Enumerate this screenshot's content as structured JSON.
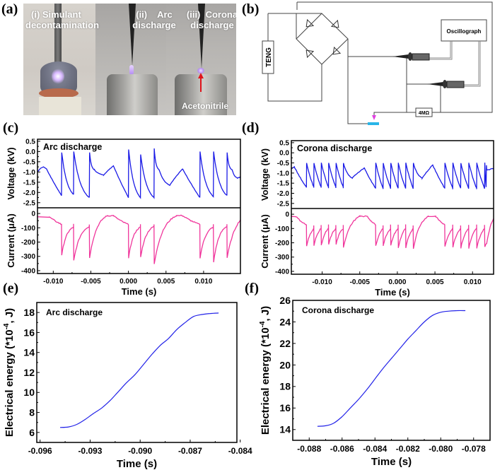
{
  "panels": {
    "a": "(a)",
    "b": "(b)",
    "c": "(c)",
    "d": "(d)",
    "e": "(e)",
    "f": "(f)"
  },
  "photo": {
    "captions": [
      {
        "line1": "(i) Simulant",
        "line2": "decontamination"
      },
      {
        "line1": "(ii)    Arc",
        "line2": "discharge"
      },
      {
        "line1": "(iii)  Corona",
        "line2": "discharge"
      }
    ],
    "annotation": "Acetonitrile",
    "colors": {
      "plasma": "#c9a8ff",
      "arrow": "#e0141b",
      "copper": "#b86a4c"
    }
  },
  "circuit": {
    "teng_label": "TENG",
    "oscillograph_label": "Oscillograph",
    "resistor_label": "4MΩ",
    "colors": {
      "electrode": "#29b5e8",
      "needle": "#e040e0",
      "probe": "#6d6d6d"
    }
  },
  "chart_data": [
    {
      "id": "c",
      "type": "line",
      "title": "Arc discharge",
      "xlabel": "Time (s)",
      "xlim": [
        -0.0121,
        0.0149
      ],
      "xticks": [
        "-0.010",
        "-0.005",
        "0.000",
        "0.005",
        "0.010"
      ],
      "xtick_values": [
        -0.01,
        -0.005,
        0.0,
        0.005,
        0.01
      ],
      "subplots": [
        {
          "name": "voltage",
          "ylabel": "Voltage (kV)",
          "ylim": [
            -2.75,
            0.6
          ],
          "yticks": [
            "0.5",
            "0.0",
            "-0.5",
            "-1.0",
            "-1.5",
            "-2.0",
            "-2.5"
          ],
          "ytick_values": [
            0.5,
            0.0,
            -0.5,
            -1.0,
            -1.5,
            -2.0,
            -2.5
          ],
          "color": "#1a1ae6",
          "baseline_points": [
            [
              -0.0121,
              -1.0
            ],
            [
              -0.0113,
              -0.75
            ],
            [
              -0.0089,
              -2.15
            ]
          ],
          "spikes": [
            {
              "t": -0.0089,
              "peak": -0.05,
              "bottom": -2.15
            },
            {
              "t": -0.0073,
              "peak": 0.0,
              "bottom": -2.1
            },
            {
              "t": -0.0052,
              "peak": -0.05,
              "bottom": -2.25
            },
            {
              "t": 0.0,
              "peak": 0.1,
              "bottom": -2.25
            },
            {
              "t": 0.0016,
              "peak": -0.15,
              "bottom": -2.25
            },
            {
              "t": 0.0034,
              "peak": 0.15,
              "bottom": -2.25
            },
            {
              "t": 0.0095,
              "peak": 0.0,
              "bottom": -2.25
            },
            {
              "t": 0.0113,
              "peak": 0.0,
              "bottom": -2.2
            },
            {
              "t": 0.0131,
              "peak": -0.05,
              "bottom": -2.15
            }
          ],
          "rest_segments": [
            {
              "from": -0.0052,
              "mid": -0.0033,
              "mid_val": -1.15,
              "to": -0.002,
              "to_val": -0.7
            },
            {
              "from": 0.0034,
              "mid": 0.0055,
              "mid_val": -1.65,
              "to": 0.0072,
              "to_val": -0.85
            },
            {
              "from": 0.0131,
              "mid": 0.0145,
              "mid_val": -1.3,
              "to": 0.0149,
              "to_val": -1.25
            }
          ]
        },
        {
          "name": "current",
          "ylabel": "Current (μA)",
          "ylim": [
            -420,
            40
          ],
          "yticks": [
            "0",
            "-100",
            "-200",
            "-300",
            "-400"
          ],
          "ytick_values": [
            0,
            -100,
            -200,
            -300,
            -400
          ],
          "color": "#f0359b",
          "spikes": [
            {
              "t": -0.0089,
              "dip": -290,
              "recover": -95
            },
            {
              "t": -0.0073,
              "dip": -330,
              "recover": -90
            },
            {
              "t": -0.0052,
              "dip": -310,
              "recover": -90
            },
            {
              "t": 0.0,
              "dip": -310,
              "recover": -95
            },
            {
              "t": 0.0016,
              "dip": -305,
              "recover": -90
            },
            {
              "t": 0.0034,
              "dip": -350,
              "recover": -15
            },
            {
              "t": 0.0095,
              "dip": -310,
              "recover": -95
            },
            {
              "t": 0.0113,
              "dip": -340,
              "recover": -90
            },
            {
              "t": 0.0131,
              "dip": -310,
              "recover": -45
            }
          ]
        }
      ]
    },
    {
      "id": "d",
      "type": "line",
      "title": "Corona discharge",
      "xlabel": "Time (s)",
      "xlim": [
        -0.0141,
        0.0128
      ],
      "xticks": [
        "-0.010",
        "-0.005",
        "0.000",
        "0.005",
        "0.010"
      ],
      "xtick_values": [
        -0.01,
        -0.005,
        0.0,
        0.005,
        0.01
      ],
      "subplots": [
        {
          "name": "voltage",
          "ylabel": "Voltage (kV)",
          "ylim": [
            -2.75,
            0.6
          ],
          "yticks": [
            "0.5",
            "0.0",
            "-0.5",
            "-1.0",
            "-1.5",
            "-2.0",
            "-2.5"
          ],
          "ytick_values": [
            0.5,
            0.0,
            -0.5,
            -1.0,
            -1.5,
            -2.0,
            -2.5
          ],
          "color": "#1a1ae6",
          "burst_groups": [
            {
              "start": -0.0121,
              "end": -0.0072,
              "count": 6,
              "peak": -0.5,
              "bottom": -1.7
            },
            {
              "start": -0.0029,
              "end": 0.0021,
              "count": 6,
              "peak": -0.5,
              "bottom": -1.75
            },
            {
              "start": 0.0063,
              "end": 0.0116,
              "count": 6,
              "peak": -0.5,
              "bottom": -1.75
            }
          ],
          "hump_peaks": [
            {
              "t": -0.0141,
              "v": -0.8
            },
            {
              "t": -0.0137,
              "v": -0.7
            },
            {
              "t": -0.006,
              "v": -1.25
            },
            {
              "t": -0.0044,
              "v": -0.75
            },
            {
              "t": 0.0033,
              "v": -1.25
            },
            {
              "t": 0.0047,
              "v": -0.6
            },
            {
              "t": 0.0119,
              "v": -0.85
            },
            {
              "t": 0.0128,
              "v": -0.75
            }
          ]
        },
        {
          "name": "current",
          "ylabel": "Current (μA)",
          "ylim": [
            -420,
            40
          ],
          "yticks": [
            "0",
            "-100",
            "-200",
            "-300",
            "-400"
          ],
          "ytick_values": [
            0,
            -100,
            -200,
            -300,
            -400
          ],
          "color": "#f0359b",
          "burst_groups": [
            {
              "start": -0.0121,
              "end": -0.0072,
              "count": 6,
              "dip": -220,
              "recover": -100
            },
            {
              "start": -0.0029,
              "end": 0.0021,
              "count": 6,
              "dip": -230,
              "recover": -100
            },
            {
              "start": 0.0063,
              "end": 0.0116,
              "count": 6,
              "dip": -230,
              "recover": -100
            }
          ]
        }
      ]
    },
    {
      "id": "e",
      "type": "line",
      "title": "Arc discharge",
      "xlabel": "Time (s)",
      "ylabel": "Electrical energy (*10⁻⁴, J)",
      "ylabel_parts": {
        "pre": "Electrical energy (*10",
        "sup": "-4",
        "post": ", J)"
      },
      "xlim": [
        -0.0962,
        -0.0842
      ],
      "ylim": [
        5,
        19
      ],
      "xticks": [
        "-0.096",
        "-0.093",
        "-0.090",
        "-0.087",
        "-0.084"
      ],
      "xtick_values": [
        -0.096,
        -0.093,
        -0.09,
        -0.087,
        -0.084
      ],
      "yticks": [
        "6",
        "8",
        "10",
        "12",
        "14",
        "16",
        "18"
      ],
      "ytick_values": [
        6,
        8,
        10,
        12,
        14,
        16,
        18
      ],
      "color": "#2222e8",
      "x": [
        -0.0948,
        -0.0943,
        -0.0938,
        -0.0933,
        -0.0928,
        -0.0923,
        -0.0918,
        -0.0913,
        -0.0908,
        -0.0903,
        -0.0898,
        -0.0893,
        -0.0888,
        -0.0883,
        -0.0878,
        -0.0873,
        -0.0868,
        -0.0863,
        -0.0858,
        -0.0853
      ],
      "y": [
        6.5,
        6.55,
        6.8,
        7.3,
        7.9,
        8.45,
        9.2,
        10.1,
        11.0,
        11.8,
        12.8,
        13.8,
        14.7,
        15.4,
        16.3,
        17.0,
        17.6,
        17.8,
        17.9,
        17.95
      ]
    },
    {
      "id": "f",
      "type": "line",
      "title": "Corona discharge",
      "xlabel": "Time (s)",
      "ylabel": "Electrical energy (*10⁻⁴, J)",
      "ylabel_parts": {
        "pre": "Electrical energy (*10",
        "sup": "-4",
        "post": ", J)"
      },
      "xlim": [
        -0.089,
        -0.077
      ],
      "ylim": [
        13,
        26
      ],
      "xticks": [
        "-0.088",
        "-0.086",
        "-0.084",
        "-0.082",
        "-0.080",
        "-0.078"
      ],
      "xtick_values": [
        -0.088,
        -0.086,
        -0.084,
        -0.082,
        -0.08,
        -0.078
      ],
      "yticks": [
        "14",
        "16",
        "18",
        "20",
        "22",
        "24",
        "26"
      ],
      "ytick_values": [
        14,
        16,
        18,
        20,
        22,
        24,
        26
      ],
      "color": "#2222e8",
      "x": [
        -0.0875,
        -0.087,
        -0.0865,
        -0.086,
        -0.0855,
        -0.085,
        -0.0845,
        -0.084,
        -0.0835,
        -0.083,
        -0.0825,
        -0.082,
        -0.0815,
        -0.081,
        -0.0805,
        -0.08,
        -0.0795,
        -0.079,
        -0.0785
      ],
      "y": [
        14.3,
        14.35,
        14.6,
        15.2,
        16.0,
        16.8,
        17.7,
        18.7,
        19.7,
        20.6,
        21.5,
        22.4,
        23.2,
        24.0,
        24.6,
        24.9,
        25.0,
        25.05,
        25.05
      ]
    }
  ]
}
